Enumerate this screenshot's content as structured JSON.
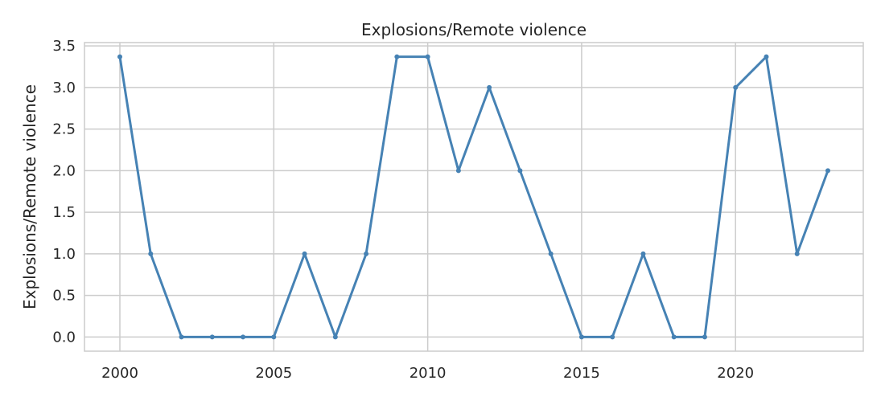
{
  "chart_data": {
    "type": "line",
    "title": "Explosions/Remote violence",
    "xlabel": "",
    "ylabel": "Explosions/Remote violence",
    "x": [
      2000,
      2001,
      2002,
      2003,
      2004,
      2005,
      2006,
      2007,
      2008,
      2009,
      2010,
      2011,
      2012,
      2013,
      2014,
      2015,
      2016,
      2017,
      2018,
      2019,
      2020,
      2021,
      2022,
      2023
    ],
    "series": [
      {
        "values": [
          3.37,
          1,
          0,
          0,
          0,
          0,
          1,
          0,
          1,
          3.37,
          3.37,
          2,
          3,
          2,
          1,
          0,
          0,
          1,
          0,
          0,
          3,
          3.37,
          1,
          2
        ]
      }
    ],
    "x_ticks": [
      "2000",
      "2005",
      "2010",
      "2015",
      "2020"
    ],
    "x_tick_values": [
      2000,
      2005,
      2010,
      2015,
      2020
    ],
    "y_ticks": [
      "0.0",
      "0.5",
      "1.0",
      "1.5",
      "2.0",
      "2.5",
      "3.0",
      "3.5"
    ],
    "y_tick_values": [
      0,
      0.5,
      1,
      1.5,
      2,
      2.5,
      3,
      3.5
    ],
    "xlim": [
      1998.85,
      2024.15
    ],
    "ylim": [
      -0.17,
      3.54
    ],
    "grid": true,
    "legend": "none",
    "colors": {
      "line": "#4682b4",
      "grid": "#cccccc",
      "axes": "#cccccc",
      "text": "#262626"
    }
  }
}
